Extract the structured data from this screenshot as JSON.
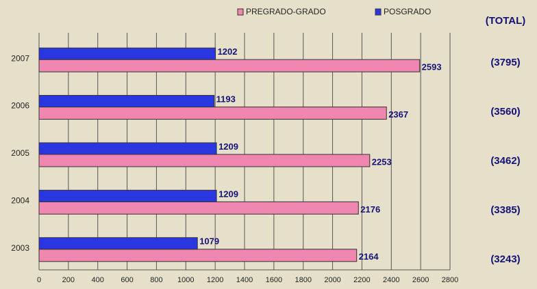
{
  "chart_data": {
    "type": "hbar",
    "categories": [
      "2007",
      "2006",
      "2005",
      "2004",
      "2003"
    ],
    "series": [
      {
        "name": "PREGRADO-GRADO",
        "color": "#ee86b0",
        "values": [
          2593,
          2367,
          2253,
          2176,
          2164
        ]
      },
      {
        "name": "POSGRADO",
        "color": "#2a37e0",
        "values": [
          1202,
          1193,
          1209,
          1209,
          1079
        ]
      }
    ],
    "xlim": [
      0,
      2800
    ],
    "xticks": [
      0,
      200,
      400,
      600,
      800,
      1000,
      1200,
      1400,
      1600,
      1800,
      2000,
      2200,
      2400,
      2600,
      2800
    ],
    "grid": true,
    "legend": "top",
    "totals_header": "(TOTAL)",
    "totals": [
      "(3795)",
      "(3560)",
      "(3462)",
      "(3385)",
      "(3243)"
    ]
  }
}
